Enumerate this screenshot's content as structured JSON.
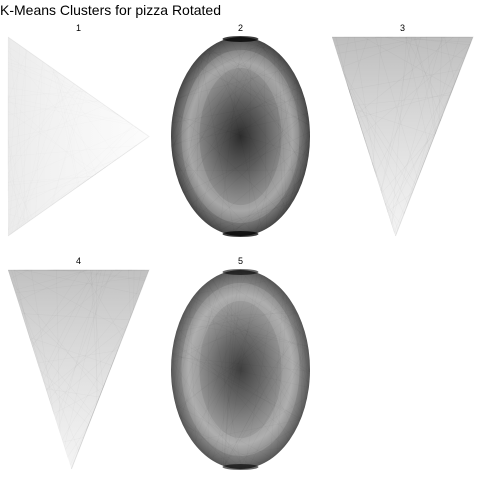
{
  "chart_data": {
    "type": "heatmap",
    "title": "K-Means Clusters for pizza Rotated",
    "layout": {
      "columns": 3,
      "rows": 2
    },
    "panels": [
      {
        "label": "1",
        "shape": "triangle-right",
        "density": 0.12
      },
      {
        "label": "2",
        "shape": "ellipse",
        "density": 0.95
      },
      {
        "label": "3",
        "shape": "triangle-down",
        "density": 0.35
      },
      {
        "label": "4",
        "shape": "triangle-down",
        "density": 0.28
      },
      {
        "label": "5",
        "shape": "ellipse",
        "density": 0.75
      }
    ]
  }
}
